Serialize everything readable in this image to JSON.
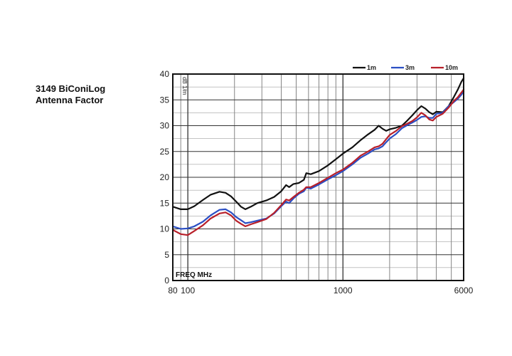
{
  "chart_data": {
    "type": "line",
    "title_line1": "3149 BiConiLog",
    "title_line2": "Antenna Factor",
    "xlabel": "FREQ MHz",
    "ylabel": "dB 1/m",
    "x_scale": "log",
    "xlim": [
      80,
      6000
    ],
    "ylim": [
      0,
      40
    ],
    "y_ticks": [
      0,
      5,
      10,
      15,
      20,
      25,
      30,
      35,
      40
    ],
    "x_tick_labels": [
      {
        "value": 80,
        "label": "80"
      },
      {
        "value": 100,
        "label": "100"
      },
      {
        "value": 1000,
        "label": "1000"
      },
      {
        "value": 6000,
        "label": "6000"
      }
    ],
    "grid": true,
    "legend_position": "top-right",
    "series": [
      {
        "name": "1m",
        "color": "#111111",
        "points": [
          [
            80,
            14.3
          ],
          [
            90,
            13.8
          ],
          [
            100,
            13.8
          ],
          [
            110,
            14.4
          ],
          [
            125,
            15.6
          ],
          [
            140,
            16.6
          ],
          [
            160,
            17.2
          ],
          [
            175,
            17.0
          ],
          [
            190,
            16.3
          ],
          [
            205,
            15.3
          ],
          [
            220,
            14.3
          ],
          [
            235,
            13.8
          ],
          [
            255,
            14.3
          ],
          [
            280,
            15.0
          ],
          [
            320,
            15.5
          ],
          [
            360,
            16.2
          ],
          [
            400,
            17.3
          ],
          [
            430,
            18.5
          ],
          [
            450,
            18.1
          ],
          [
            480,
            18.7
          ],
          [
            520,
            18.9
          ],
          [
            560,
            19.5
          ],
          [
            580,
            20.8
          ],
          [
            620,
            20.6
          ],
          [
            700,
            21.2
          ],
          [
            800,
            22.3
          ],
          [
            900,
            23.5
          ],
          [
            1000,
            24.6
          ],
          [
            1150,
            25.8
          ],
          [
            1300,
            27.2
          ],
          [
            1450,
            28.3
          ],
          [
            1600,
            29.2
          ],
          [
            1700,
            30.0
          ],
          [
            1800,
            29.4
          ],
          [
            1900,
            29.0
          ],
          [
            2000,
            29.3
          ],
          [
            2200,
            29.6
          ],
          [
            2400,
            30.0
          ],
          [
            2600,
            31.0
          ],
          [
            2800,
            32.0
          ],
          [
            3000,
            33.0
          ],
          [
            3200,
            33.8
          ],
          [
            3400,
            33.3
          ],
          [
            3600,
            32.6
          ],
          [
            3800,
            32.2
          ],
          [
            4000,
            32.7
          ],
          [
            4400,
            32.6
          ],
          [
            4800,
            33.8
          ],
          [
            5200,
            35.6
          ],
          [
            5500,
            37.0
          ],
          [
            5800,
            38.5
          ],
          [
            6000,
            39.2
          ]
        ]
      },
      {
        "name": "3m",
        "color": "#2b4fc4",
        "points": [
          [
            80,
            10.5
          ],
          [
            90,
            10.0
          ],
          [
            100,
            10.1
          ],
          [
            110,
            10.5
          ],
          [
            125,
            11.4
          ],
          [
            140,
            12.6
          ],
          [
            160,
            13.7
          ],
          [
            175,
            13.8
          ],
          [
            190,
            13.2
          ],
          [
            205,
            12.3
          ],
          [
            220,
            11.7
          ],
          [
            235,
            11.1
          ],
          [
            255,
            11.3
          ],
          [
            280,
            11.6
          ],
          [
            320,
            12.0
          ],
          [
            360,
            13.0
          ],
          [
            400,
            14.4
          ],
          [
            430,
            15.3
          ],
          [
            450,
            15.0
          ],
          [
            480,
            15.9
          ],
          [
            520,
            16.8
          ],
          [
            560,
            17.3
          ],
          [
            580,
            18.0
          ],
          [
            620,
            17.8
          ],
          [
            700,
            18.6
          ],
          [
            800,
            19.6
          ],
          [
            900,
            20.4
          ],
          [
            1000,
            21.2
          ],
          [
            1150,
            22.5
          ],
          [
            1300,
            23.8
          ],
          [
            1450,
            24.6
          ],
          [
            1600,
            25.4
          ],
          [
            1700,
            25.6
          ],
          [
            1800,
            26.0
          ],
          [
            1900,
            26.8
          ],
          [
            2000,
            27.5
          ],
          [
            2200,
            28.4
          ],
          [
            2400,
            29.5
          ],
          [
            2600,
            30.1
          ],
          [
            2800,
            30.6
          ],
          [
            3000,
            31.1
          ],
          [
            3200,
            31.7
          ],
          [
            3400,
            31.8
          ],
          [
            3600,
            31.5
          ],
          [
            3800,
            31.5
          ],
          [
            4000,
            32.3
          ],
          [
            4400,
            32.5
          ],
          [
            4800,
            33.8
          ],
          [
            5200,
            34.6
          ],
          [
            5500,
            35.2
          ],
          [
            5800,
            36.0
          ],
          [
            6000,
            36.6
          ]
        ]
      },
      {
        "name": "10m",
        "color": "#b8202a",
        "points": [
          [
            80,
            9.8
          ],
          [
            90,
            9.0
          ],
          [
            100,
            8.8
          ],
          [
            110,
            9.6
          ],
          [
            125,
            10.7
          ],
          [
            140,
            12.0
          ],
          [
            160,
            13.0
          ],
          [
            175,
            13.2
          ],
          [
            190,
            12.6
          ],
          [
            205,
            11.6
          ],
          [
            220,
            11.0
          ],
          [
            235,
            10.5
          ],
          [
            255,
            10.9
          ],
          [
            280,
            11.3
          ],
          [
            320,
            11.9
          ],
          [
            360,
            13.1
          ],
          [
            400,
            14.6
          ],
          [
            430,
            15.7
          ],
          [
            450,
            15.5
          ],
          [
            480,
            16.2
          ],
          [
            520,
            17.0
          ],
          [
            560,
            17.6
          ],
          [
            580,
            18.1
          ],
          [
            620,
            18.1
          ],
          [
            700,
            18.9
          ],
          [
            800,
            19.9
          ],
          [
            900,
            20.8
          ],
          [
            1000,
            21.5
          ],
          [
            1150,
            22.8
          ],
          [
            1300,
            24.2
          ],
          [
            1450,
            25.0
          ],
          [
            1600,
            25.8
          ],
          [
            1700,
            26.0
          ],
          [
            1800,
            26.5
          ],
          [
            1900,
            27.4
          ],
          [
            2000,
            28.2
          ],
          [
            2200,
            29.0
          ],
          [
            2400,
            29.9
          ],
          [
            2600,
            30.4
          ],
          [
            2800,
            30.9
          ],
          [
            3000,
            31.6
          ],
          [
            3200,
            32.5
          ],
          [
            3400,
            32.0
          ],
          [
            3600,
            31.2
          ],
          [
            3800,
            31.0
          ],
          [
            4000,
            31.7
          ],
          [
            4400,
            32.3
          ],
          [
            4800,
            33.5
          ],
          [
            5200,
            34.8
          ],
          [
            5500,
            35.5
          ],
          [
            5800,
            36.4
          ],
          [
            6000,
            37.0
          ]
        ]
      }
    ]
  }
}
